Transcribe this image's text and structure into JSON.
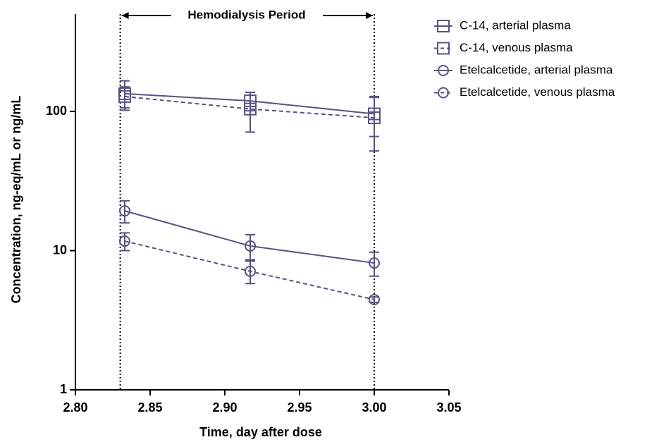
{
  "chart_data": {
    "type": "line",
    "xlabel": "Time, day after dose",
    "ylabel": "Concentration, ng-eq/mL or ng/mL",
    "annotation": "Hemodialysis Period",
    "period": [
      2.83,
      3.0
    ],
    "x": [
      2.833,
      2.917,
      3.0
    ],
    "xlim": [
      2.8,
      3.05
    ],
    "xticks": [
      {
        "value": 2.8,
        "label": "2.80"
      },
      {
        "value": 2.85,
        "label": "2.85"
      },
      {
        "value": 2.9,
        "label": "2.90"
      },
      {
        "value": 2.95,
        "label": "2.95"
      },
      {
        "value": 3.0,
        "label": "3.00"
      },
      {
        "value": 3.05,
        "label": "3.05"
      }
    ],
    "ylim": [
      1,
      500
    ],
    "yticks": [
      1,
      10,
      100
    ],
    "log_y": true,
    "series": [
      {
        "name": "C-14, arterial plasma",
        "color": "#5a5282",
        "marker": "square",
        "dashed": false,
        "values": [
          134,
          119,
          96
        ],
        "errors": [
          32,
          18,
          30
        ]
      },
      {
        "name": "C-14, venous plasma",
        "color": "#5a5282",
        "marker": "square",
        "dashed": true,
        "values": [
          128,
          104,
          90
        ],
        "errors": [
          22,
          33,
          38
        ]
      },
      {
        "name": "Etelcalcetide, arterial plasma",
        "color": "#5a5282",
        "marker": "circle",
        "dashed": false,
        "values": [
          19.3,
          10.8,
          8.15
        ],
        "errors": [
          3.5,
          2.2,
          1.6
        ]
      },
      {
        "name": "Etelcalcetide, venous plasma",
        "color": "#5a5282",
        "marker": "circle",
        "dashed": true,
        "values": [
          11.7,
          7.1,
          4.45
        ],
        "errors": [
          1.7,
          1.3,
          0.2
        ]
      }
    ]
  }
}
